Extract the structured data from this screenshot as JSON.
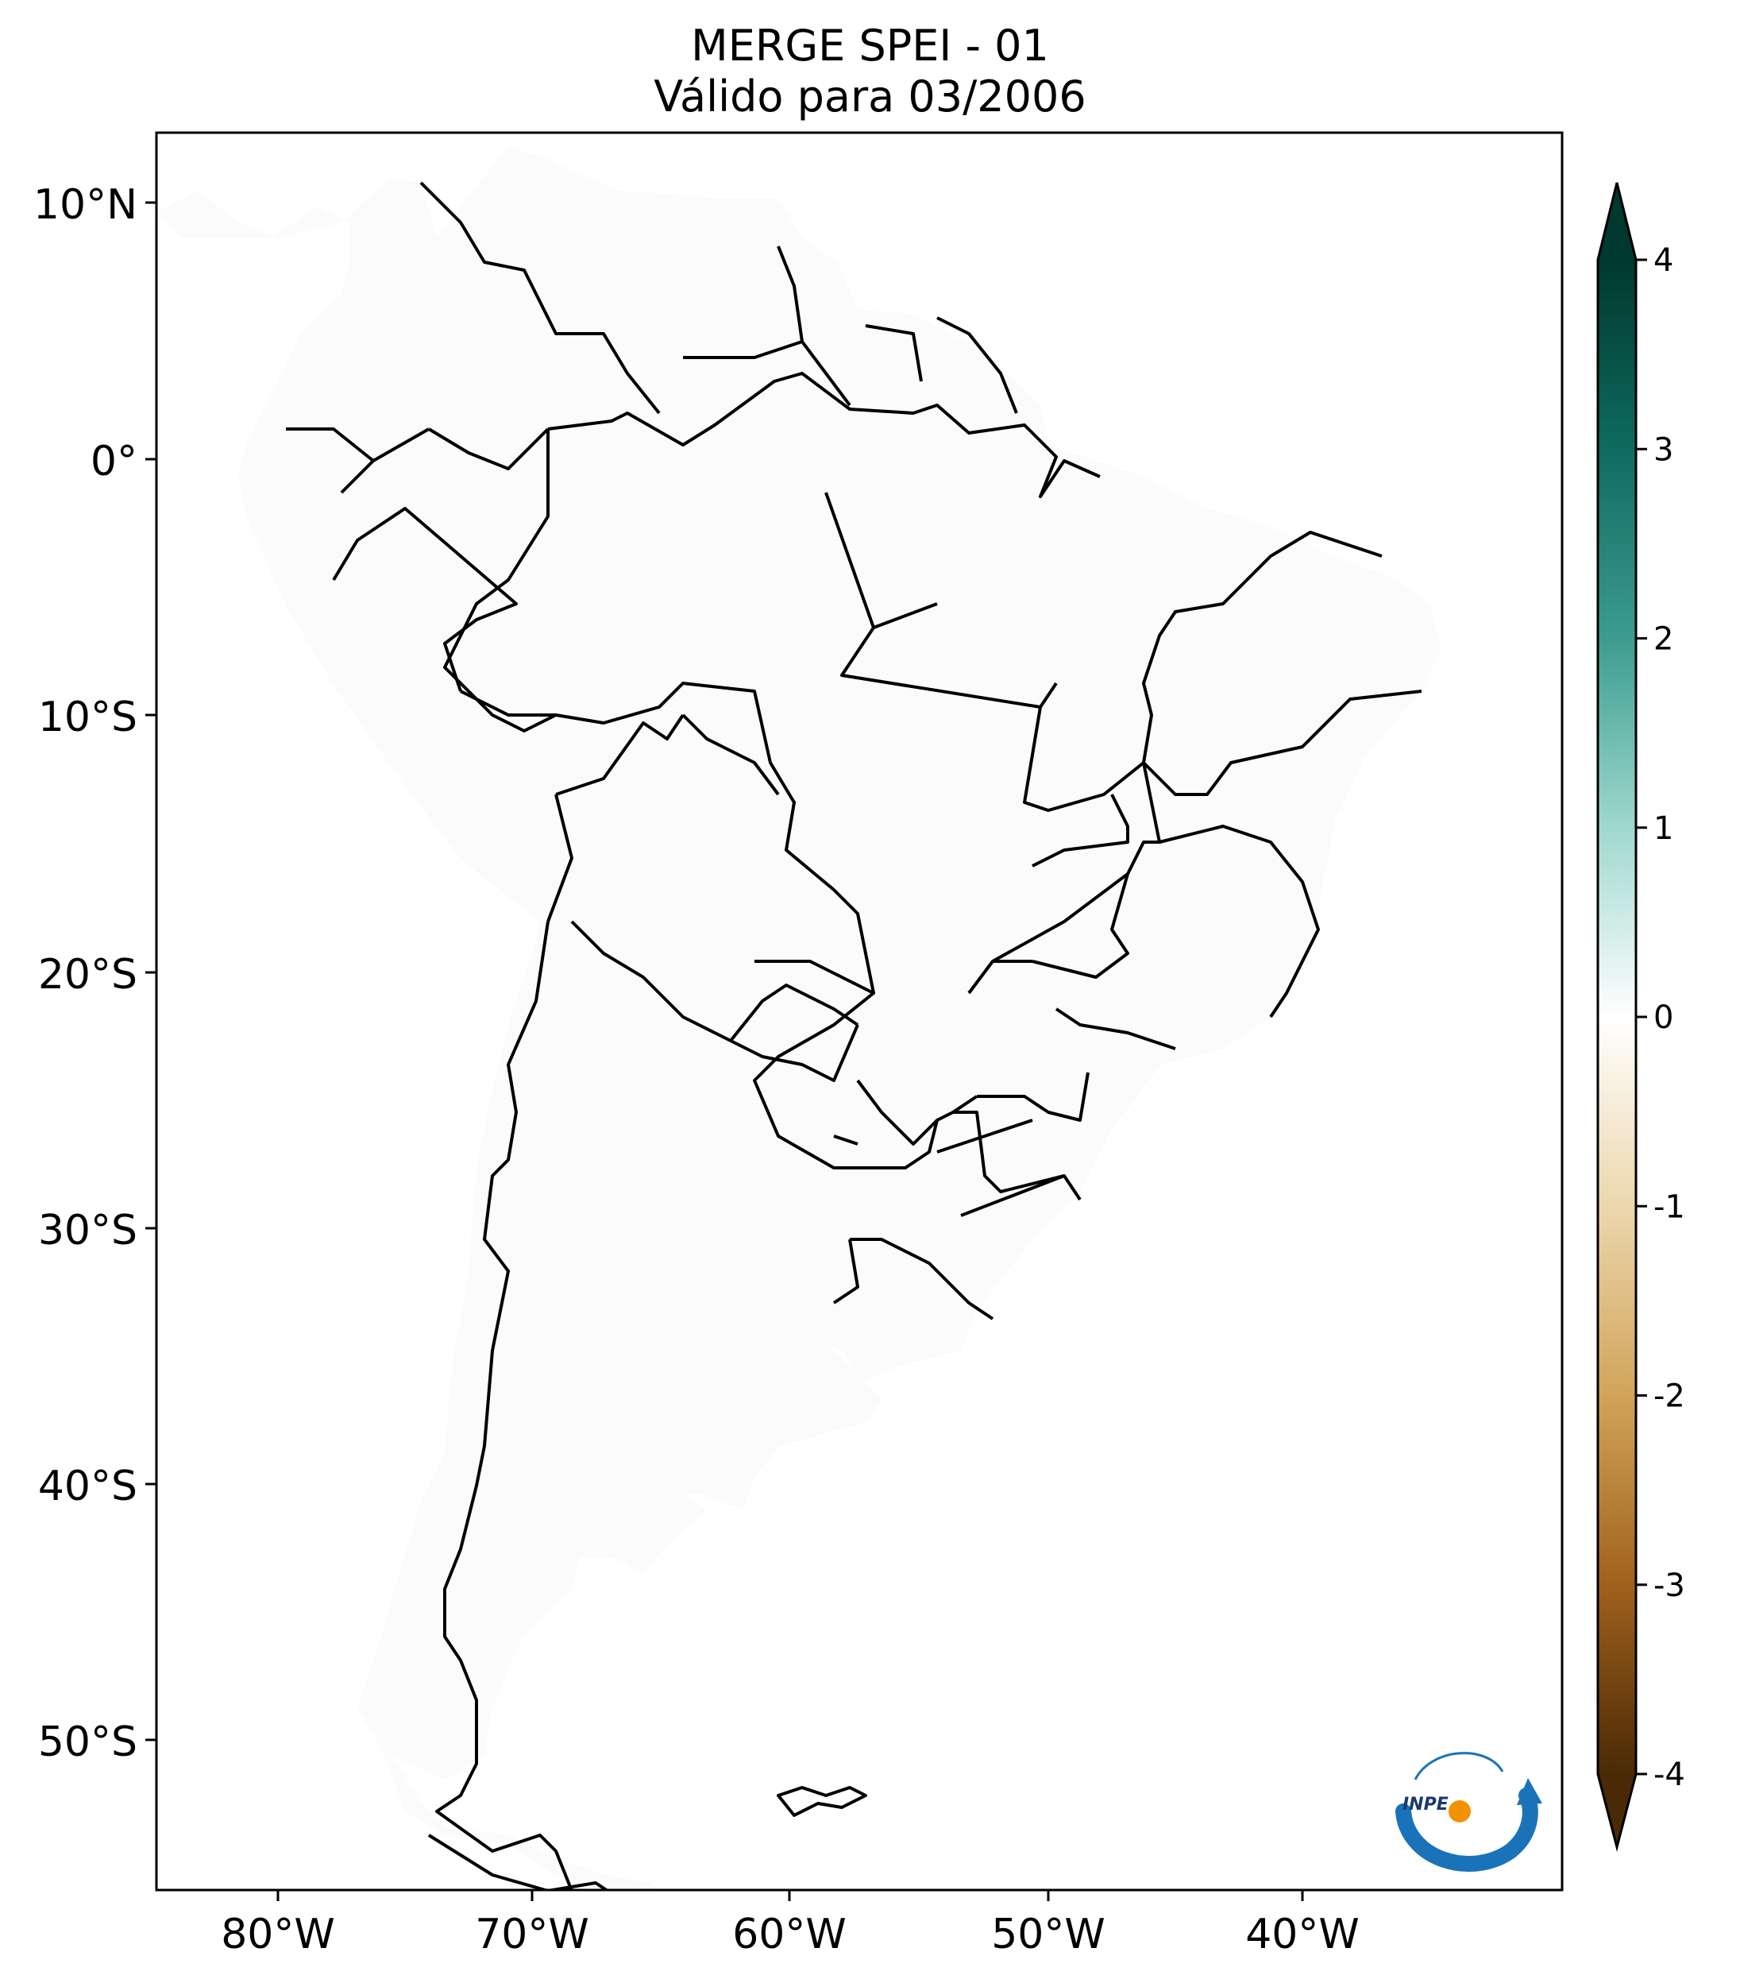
{
  "title": {
    "line1": "MERGE   SPEI - 01",
    "line2": "Válido para 03/2006"
  },
  "map": {
    "variable": "SPEI - 01",
    "lon_range": [
      -85,
      -29
    ],
    "lat_range": [
      -56,
      13
    ],
    "lon_ticks": [
      {
        "value": -80,
        "label": "80°W"
      },
      {
        "value": -70,
        "label": "70°W"
      },
      {
        "value": -60,
        "label": "60°W"
      },
      {
        "value": -50,
        "label": "50°W"
      },
      {
        "value": -40,
        "label": "40°W"
      }
    ],
    "lat_ticks": [
      {
        "value": 10,
        "label": "10°N"
      },
      {
        "value": 0,
        "label": "0°"
      },
      {
        "value": -10,
        "label": "10°S"
      },
      {
        "value": -20,
        "label": "20°S"
      },
      {
        "value": -30,
        "label": "30°S"
      },
      {
        "value": -40,
        "label": "40°S"
      },
      {
        "value": -50,
        "label": "50°S"
      }
    ]
  },
  "colorbar": {
    "range": [
      -4,
      4
    ],
    "extend": "both",
    "ticks": [
      {
        "value": 4,
        "label": "4"
      },
      {
        "value": 3,
        "label": "3"
      },
      {
        "value": 2,
        "label": "2"
      },
      {
        "value": 1,
        "label": "1"
      },
      {
        "value": 0,
        "label": "0"
      },
      {
        "value": -1,
        "label": "-1"
      },
      {
        "value": -2,
        "label": "-2"
      },
      {
        "value": -3,
        "label": "-3"
      },
      {
        "value": -4,
        "label": "-4"
      }
    ],
    "colors": {
      "wet_extreme": "#00382f",
      "wet_strong": "#0f6b5f",
      "wet_moderate": "#3c9c8f",
      "wet_light": "#9fd8cf",
      "neutral": "#ffffff",
      "dry_light": "#ecd7ad",
      "dry_moderate": "#d1a45a",
      "dry_strong": "#a0611c",
      "dry_extreme": "#4a2a06"
    }
  },
  "logo": {
    "text": "INPE",
    "blue": "#1a73b8",
    "orange": "#f39200"
  }
}
